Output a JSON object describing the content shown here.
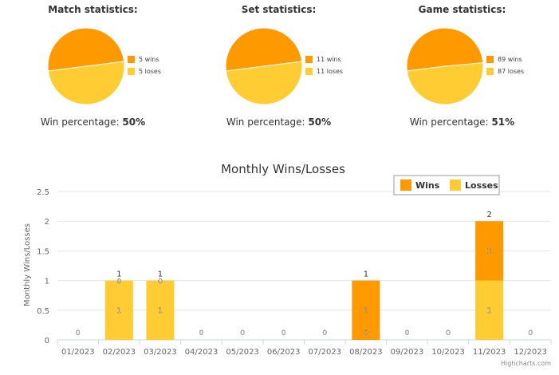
{
  "pies": [
    {
      "title": "Match statistics:",
      "pct_label": "Win percentage:",
      "pct_value": "50%",
      "wins": 5,
      "loses": 5,
      "wins_label": "5 wins",
      "loses_label": "5 loses"
    },
    {
      "title": "Set statistics:",
      "pct_label": "Win percentage:",
      "pct_value": "50%",
      "wins": 11,
      "loses": 11,
      "wins_label": "11 wins",
      "loses_label": "11 loses"
    },
    {
      "title": "Game statistics:",
      "pct_label": "Win percentage:",
      "pct_value": "51%",
      "wins": 89,
      "loses": 87,
      "wins_label": "89 wins",
      "loses_label": "87 loses"
    }
  ],
  "colors": {
    "wins": "#ff9900",
    "loses": "#ffcc33",
    "grid": "#e6e6e6",
    "axis_text": "#666666"
  },
  "chart_data": {
    "type": "bar",
    "stacked": true,
    "title": "Monthly Wins/Losses",
    "ylabel": "Monthly Wins/Losses",
    "xlabel": "",
    "categories": [
      "01/2023",
      "02/2023",
      "03/2023",
      "04/2023",
      "05/2023",
      "06/2023",
      "07/2023",
      "08/2023",
      "09/2023",
      "10/2023",
      "11/2023",
      "12/2023"
    ],
    "series": [
      {
        "name": "Wins",
        "values": [
          0,
          0,
          0,
          0,
          0,
          0,
          0,
          1,
          0,
          0,
          1,
          0
        ]
      },
      {
        "name": "Losses",
        "values": [
          0,
          1,
          1,
          0,
          0,
          0,
          0,
          0,
          0,
          0,
          1,
          0
        ]
      }
    ],
    "totals": [
      0,
      1,
      1,
      0,
      0,
      0,
      0,
      1,
      0,
      0,
      2,
      0
    ],
    "ylim": [
      0,
      2.5
    ],
    "yticks": [
      "0",
      "0.5",
      "1",
      "1.5",
      "2",
      "2.5"
    ],
    "grid": true,
    "legend_position": "top-right"
  },
  "credits": "Highcharts.com"
}
